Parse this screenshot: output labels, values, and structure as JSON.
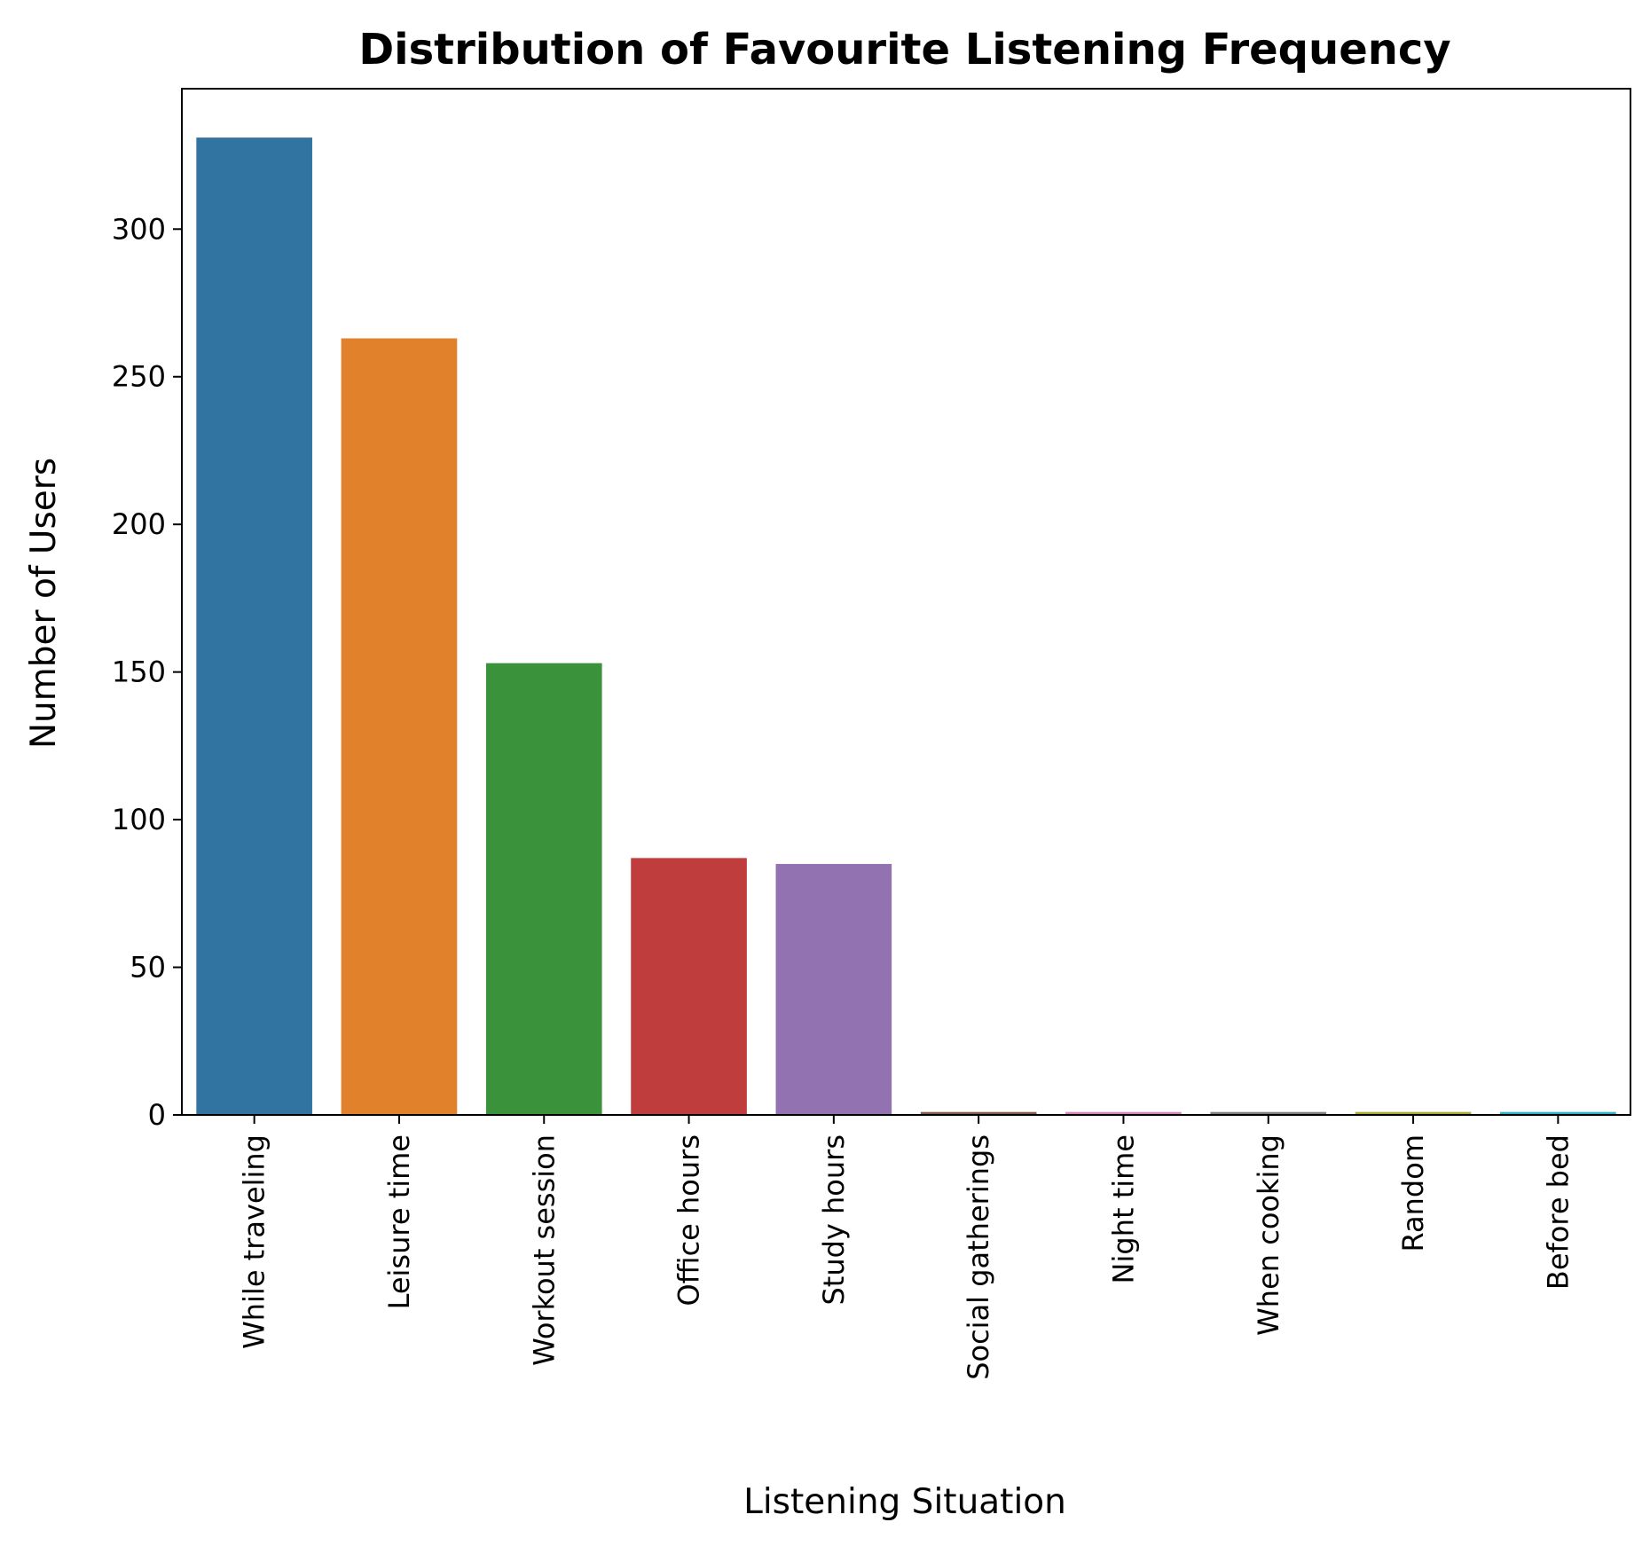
{
  "chart_data": {
    "type": "bar",
    "title": "Distribution of Favourite Listening Frequency",
    "xlabel": "Listening Situation",
    "ylabel": "Number of Users",
    "categories": [
      "While traveling",
      "Leisure time",
      "Workout session",
      "Office hours",
      "Study hours",
      "Social gatherings",
      "Night time",
      "When cooking",
      "Random",
      "Before bed"
    ],
    "values": [
      331,
      263,
      153,
      87,
      85,
      1,
      1,
      1,
      1,
      1
    ],
    "colors": [
      "#3274a1",
      "#e1812c",
      "#3a923a",
      "#c03d3e",
      "#9372b2",
      "#845b53",
      "#d684bd",
      "#7f7f7f",
      "#a9aa35",
      "#2eb3c2"
    ],
    "ylim": [
      0,
      347.55
    ],
    "yticks": [
      0,
      50,
      100,
      150,
      200,
      250,
      300
    ],
    "grid": false,
    "legend": "none"
  }
}
